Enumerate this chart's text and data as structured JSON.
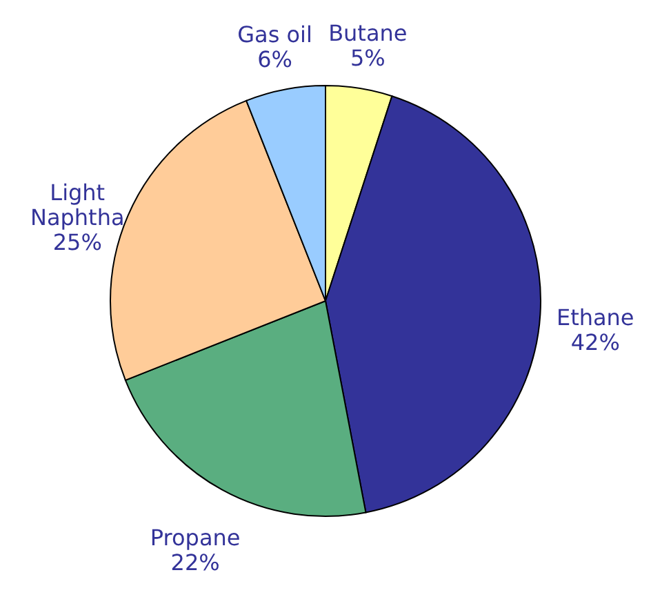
{
  "chart_data": {
    "type": "pie",
    "categories": [
      "Butane",
      "Ethane",
      "Propane",
      "Light Naphtha",
      "Gas oil"
    ],
    "values": [
      5,
      42,
      22,
      25,
      6
    ],
    "colors": [
      "#ffff99",
      "#333399",
      "#5aae80",
      "#ffcc99",
      "#99ccff"
    ],
    "value_labels": [
      "5%",
      "42%",
      "22%",
      "25%",
      "6%"
    ]
  }
}
